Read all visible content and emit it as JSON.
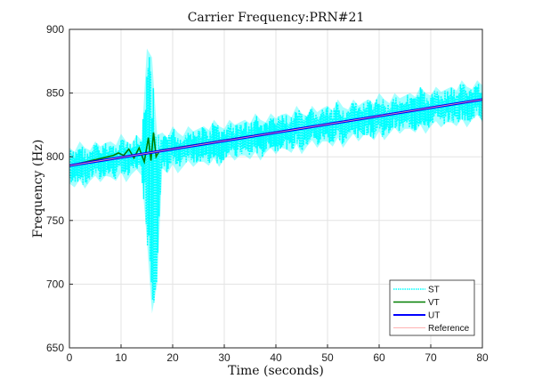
{
  "chart_data": {
    "type": "line",
    "title": "Carrier Frequency:PRN#21",
    "xlabel": "Time (seconds)",
    "ylabel": "Frequency (Hz)",
    "xlim": [
      0,
      80
    ],
    "ylim": [
      650,
      900
    ],
    "xticks": [
      "0",
      "10",
      "20",
      "30",
      "40",
      "50",
      "60",
      "70",
      "80"
    ],
    "yticks": [
      "650",
      "700",
      "750",
      "800",
      "850",
      "900"
    ],
    "grid": true,
    "legend_position": "bottom-right",
    "colors": {
      "ST": "#00ffff",
      "VT": "#007f00",
      "UT": "#0000ff",
      "Reference": "#ff9999"
    },
    "series": [
      {
        "name": "ST",
        "style": "dotted",
        "t": [
          0,
          1,
          2,
          3,
          4,
          5,
          6,
          7,
          8,
          9,
          10,
          11,
          12,
          13,
          14,
          15,
          16,
          17,
          18,
          19,
          20,
          21,
          22,
          23,
          24,
          25,
          26,
          27,
          28,
          29,
          30,
          31,
          32,
          33,
          34,
          35,
          36,
          37,
          38,
          39,
          40,
          41,
          42,
          43,
          44,
          45,
          46,
          47,
          48,
          49,
          50,
          51,
          52,
          53,
          54,
          55,
          56,
          57,
          58,
          59,
          60,
          61,
          62,
          63,
          64,
          65,
          66,
          67,
          68,
          69,
          70,
          71,
          72,
          73,
          74,
          75,
          76,
          77,
          78,
          79,
          80
        ],
        "upper": [
          807,
          804,
          812,
          807,
          805,
          812,
          808,
          811,
          812,
          809,
          818,
          812,
          810,
          817,
          813,
          885,
          878,
          817,
          819,
          815,
          824,
          819,
          816,
          824,
          820,
          822,
          824,
          821,
          829,
          824,
          822,
          829,
          825,
          827,
          829,
          826,
          834,
          829,
          827,
          834,
          830,
          833,
          834,
          831,
          840,
          834,
          832,
          840,
          835,
          838,
          840,
          836,
          845,
          839,
          837,
          845,
          840,
          843,
          845,
          841,
          850,
          845,
          842,
          850,
          846,
          848,
          850,
          847,
          855,
          850,
          848,
          855,
          851,
          853,
          855,
          852,
          860,
          855,
          853,
          860,
          856
        ],
        "lower": [
          779,
          776,
          782,
          775,
          781,
          785,
          780,
          785,
          784,
          781,
          788,
          780,
          786,
          790,
          785,
          735,
          677,
          700,
          791,
          787,
          794,
          787,
          792,
          797,
          792,
          796,
          796,
          793,
          799,
          792,
          798,
          802,
          797,
          801,
          801,
          798,
          804,
          797,
          803,
          807,
          802,
          807,
          806,
          803,
          810,
          802,
          808,
          813,
          807,
          812,
          812,
          808,
          815,
          807,
          813,
          818,
          812,
          817,
          817,
          813,
          820,
          813,
          818,
          823,
          818,
          822,
          822,
          819,
          825,
          818,
          824,
          828,
          823,
          827,
          827,
          824,
          830,
          823,
          829,
          833,
          828
        ]
      },
      {
        "name": "VT",
        "style": "solid",
        "t": [
          0,
          7.5,
          8.5,
          9.5,
          10.5,
          11.5,
          12.5,
          13.5,
          14.5,
          15.3,
          15.8,
          16.3,
          16.8,
          17.5,
          80
        ],
        "values": [
          793,
          800,
          801,
          803,
          801,
          806,
          799,
          807,
          796,
          815,
          797,
          819,
          800,
          805,
          845
        ]
      },
      {
        "name": "UT",
        "style": "solid",
        "t": [
          0,
          80
        ],
        "values": [
          793,
          845
        ]
      },
      {
        "name": "Reference",
        "style": "solid",
        "t": [
          0,
          80
        ],
        "values": [
          793,
          845
        ]
      }
    ]
  }
}
